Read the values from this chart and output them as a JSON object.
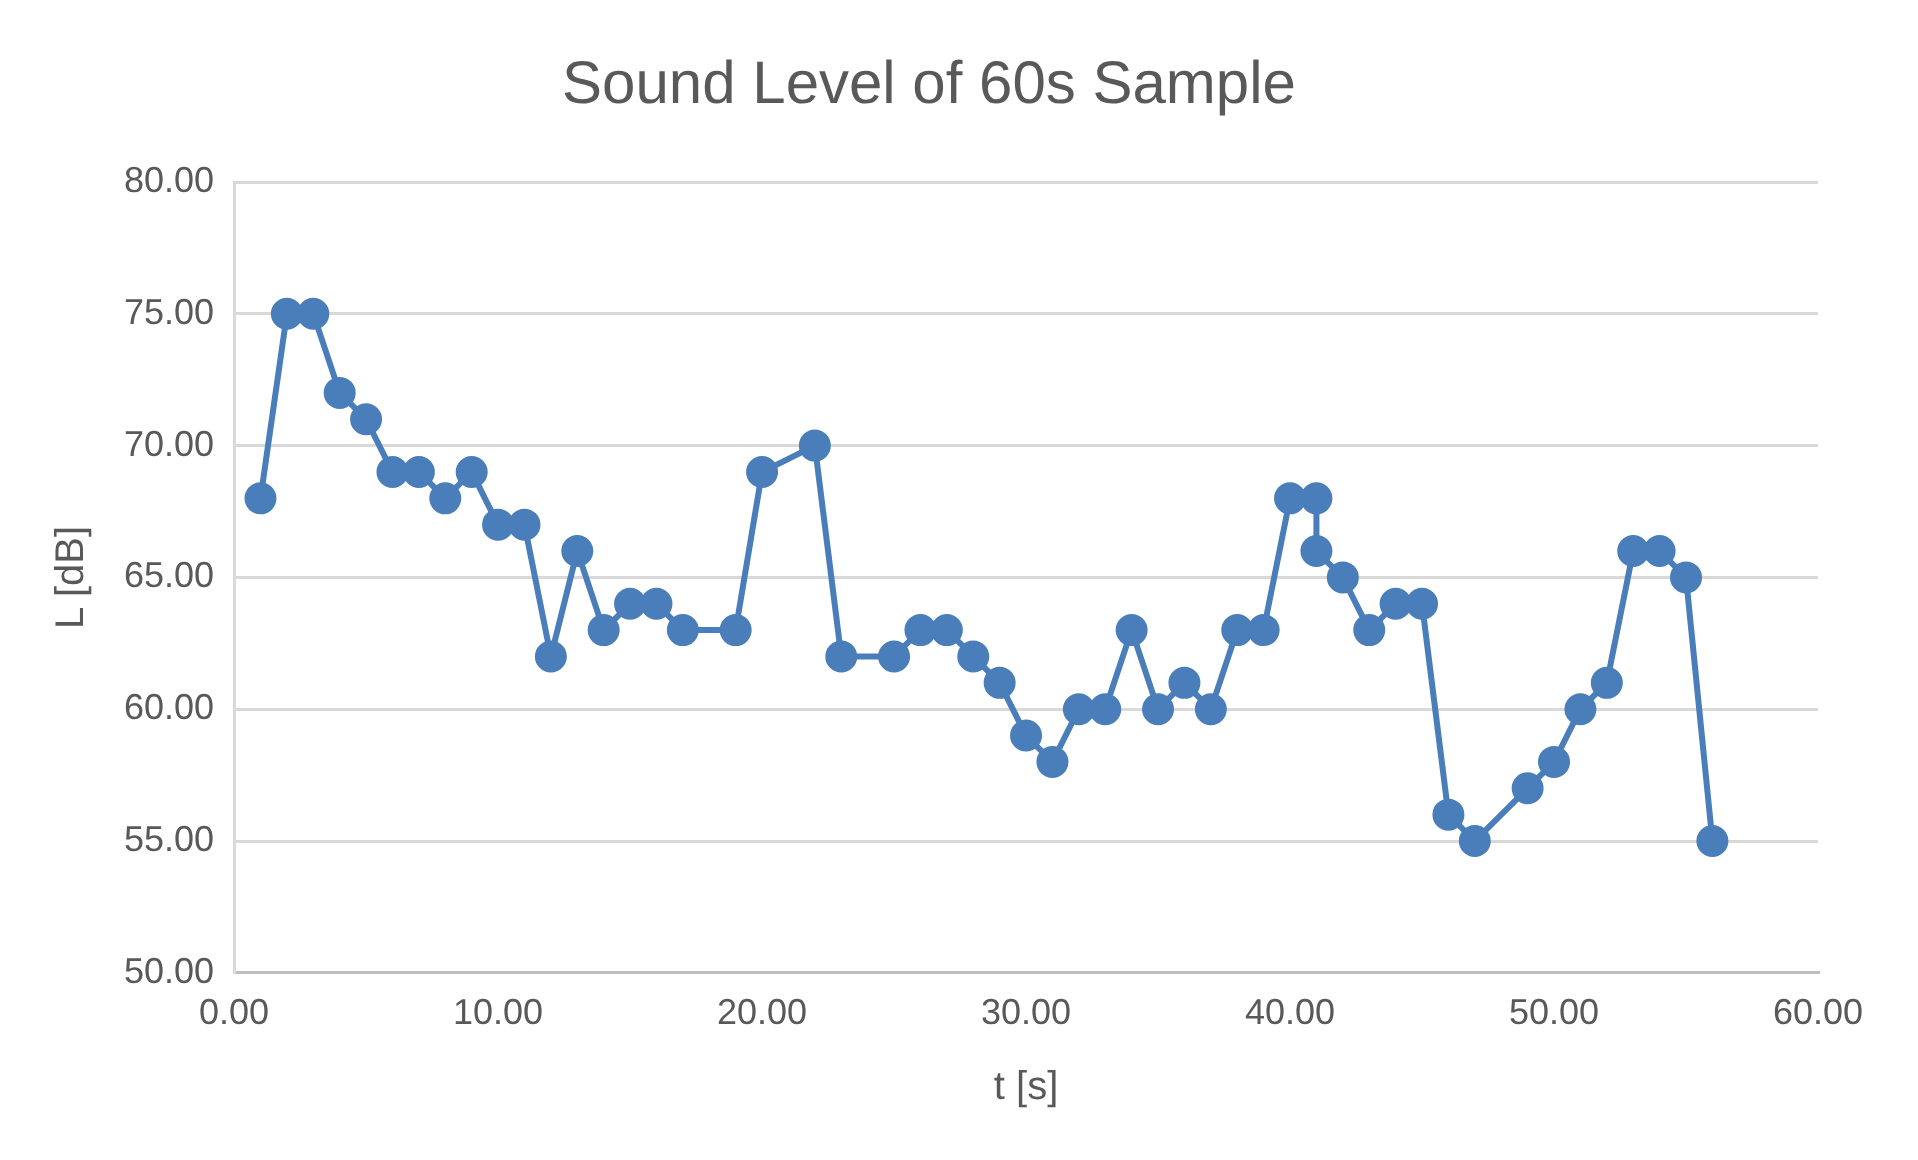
{
  "chart_data": {
    "type": "line",
    "title": "Sound Level of 60s Sample",
    "xlabel": "t [s]",
    "ylabel": "L [dB]",
    "x": [
      1,
      2,
      3,
      4,
      5,
      6,
      7,
      8,
      9,
      10,
      11,
      12,
      13,
      14,
      15,
      16,
      17,
      19,
      20,
      22,
      23,
      25,
      26,
      27,
      28,
      29,
      30,
      31,
      32,
      33,
      34,
      35,
      36,
      37,
      38,
      39,
      40,
      41,
      41,
      42,
      43,
      44,
      45,
      46,
      47,
      49,
      50,
      51,
      52,
      53,
      54,
      55,
      56
    ],
    "series": [
      {
        "color": "#4a7ebb",
        "values": [
          68,
          75,
          75,
          72,
          71,
          69,
          69,
          68,
          69,
          67,
          67,
          62,
          66,
          63,
          64,
          64,
          63,
          63,
          69,
          70,
          62,
          62,
          63,
          63,
          62,
          61,
          59,
          58,
          60,
          60,
          63,
          60,
          61,
          60,
          63,
          63,
          68,
          68,
          66,
          65,
          63,
          64,
          64,
          56,
          55,
          57,
          58,
          60,
          61,
          66,
          66,
          65,
          55
        ]
      }
    ],
    "xlim": [
      0,
      60
    ],
    "xticks": [
      {
        "value": 0,
        "label": "0.00"
      },
      {
        "value": 10,
        "label": "10.00"
      },
      {
        "value": 20,
        "label": "20.00"
      },
      {
        "value": 30,
        "label": "30.00"
      },
      {
        "value": 40,
        "label": "40.00"
      },
      {
        "value": 50,
        "label": "50.00"
      },
      {
        "value": 60,
        "label": "60.00"
      }
    ],
    "ylim": [
      50,
      80
    ],
    "yticks": [
      {
        "value": 50,
        "label": "50.00"
      },
      {
        "value": 55,
        "label": "55.00"
      },
      {
        "value": 60,
        "label": "60.00"
      },
      {
        "value": 65,
        "label": "65.00"
      },
      {
        "value": 70,
        "label": "70.00"
      },
      {
        "value": 75,
        "label": "75.00"
      },
      {
        "value": 80,
        "label": "80.00"
      }
    ],
    "grid": "y",
    "legend": false,
    "marker": "circle",
    "line_style": "solid"
  }
}
